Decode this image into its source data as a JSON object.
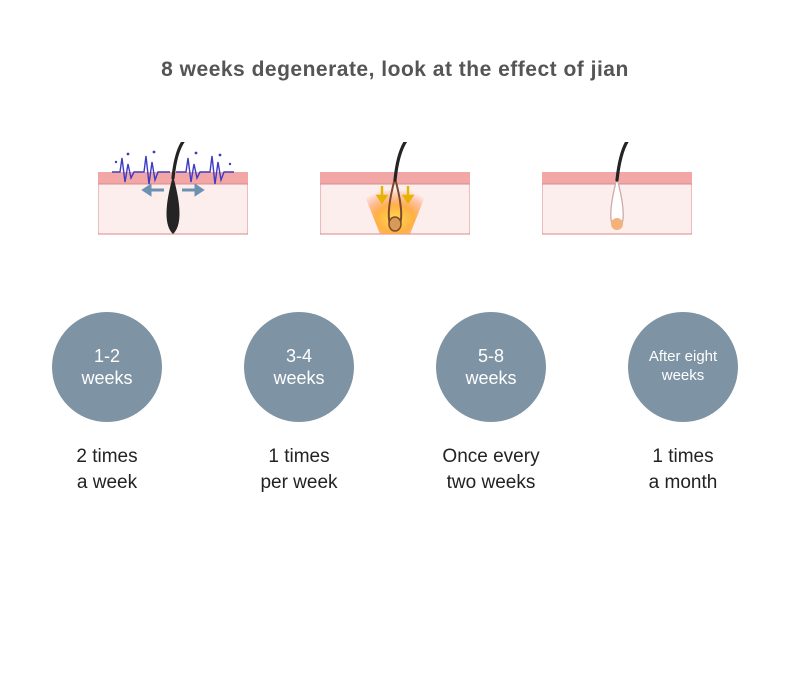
{
  "title": "8 weeks degenerate, look at the effect of jian",
  "title_color": "#555555",
  "diagram": {
    "skin_surface_color": "#f2a6a6",
    "skin_fill_color": "#fdeeee",
    "skin_border_color": "#d88a8a",
    "hair_color": "#242424",
    "pulse_color": "#3e3cc4",
    "heat_inner": "#ffd84a",
    "heat_outer": "#ff6a3c",
    "arrow_color": "#6c92b0",
    "down_arrow_color": "#e6b400",
    "residue_color": "#f3b27a"
  },
  "stages": [
    {
      "circle_label": "1-2\nweeks",
      "sub_line1": "2 times",
      "sub_line2": "a week",
      "small": false
    },
    {
      "circle_label": "3-4\nweeks",
      "sub_line1": "1 times",
      "sub_line2": "per week",
      "small": false
    },
    {
      "circle_label": "5-8\nweeks",
      "sub_line1": "Once every",
      "sub_line2": "two weeks",
      "small": false
    },
    {
      "circle_label": "After eight\nweeks",
      "sub_line1": "1 times",
      "sub_line2": "a month",
      "small": true
    }
  ],
  "circle_bg": "#7e93a4",
  "sub_color": "#222222"
}
